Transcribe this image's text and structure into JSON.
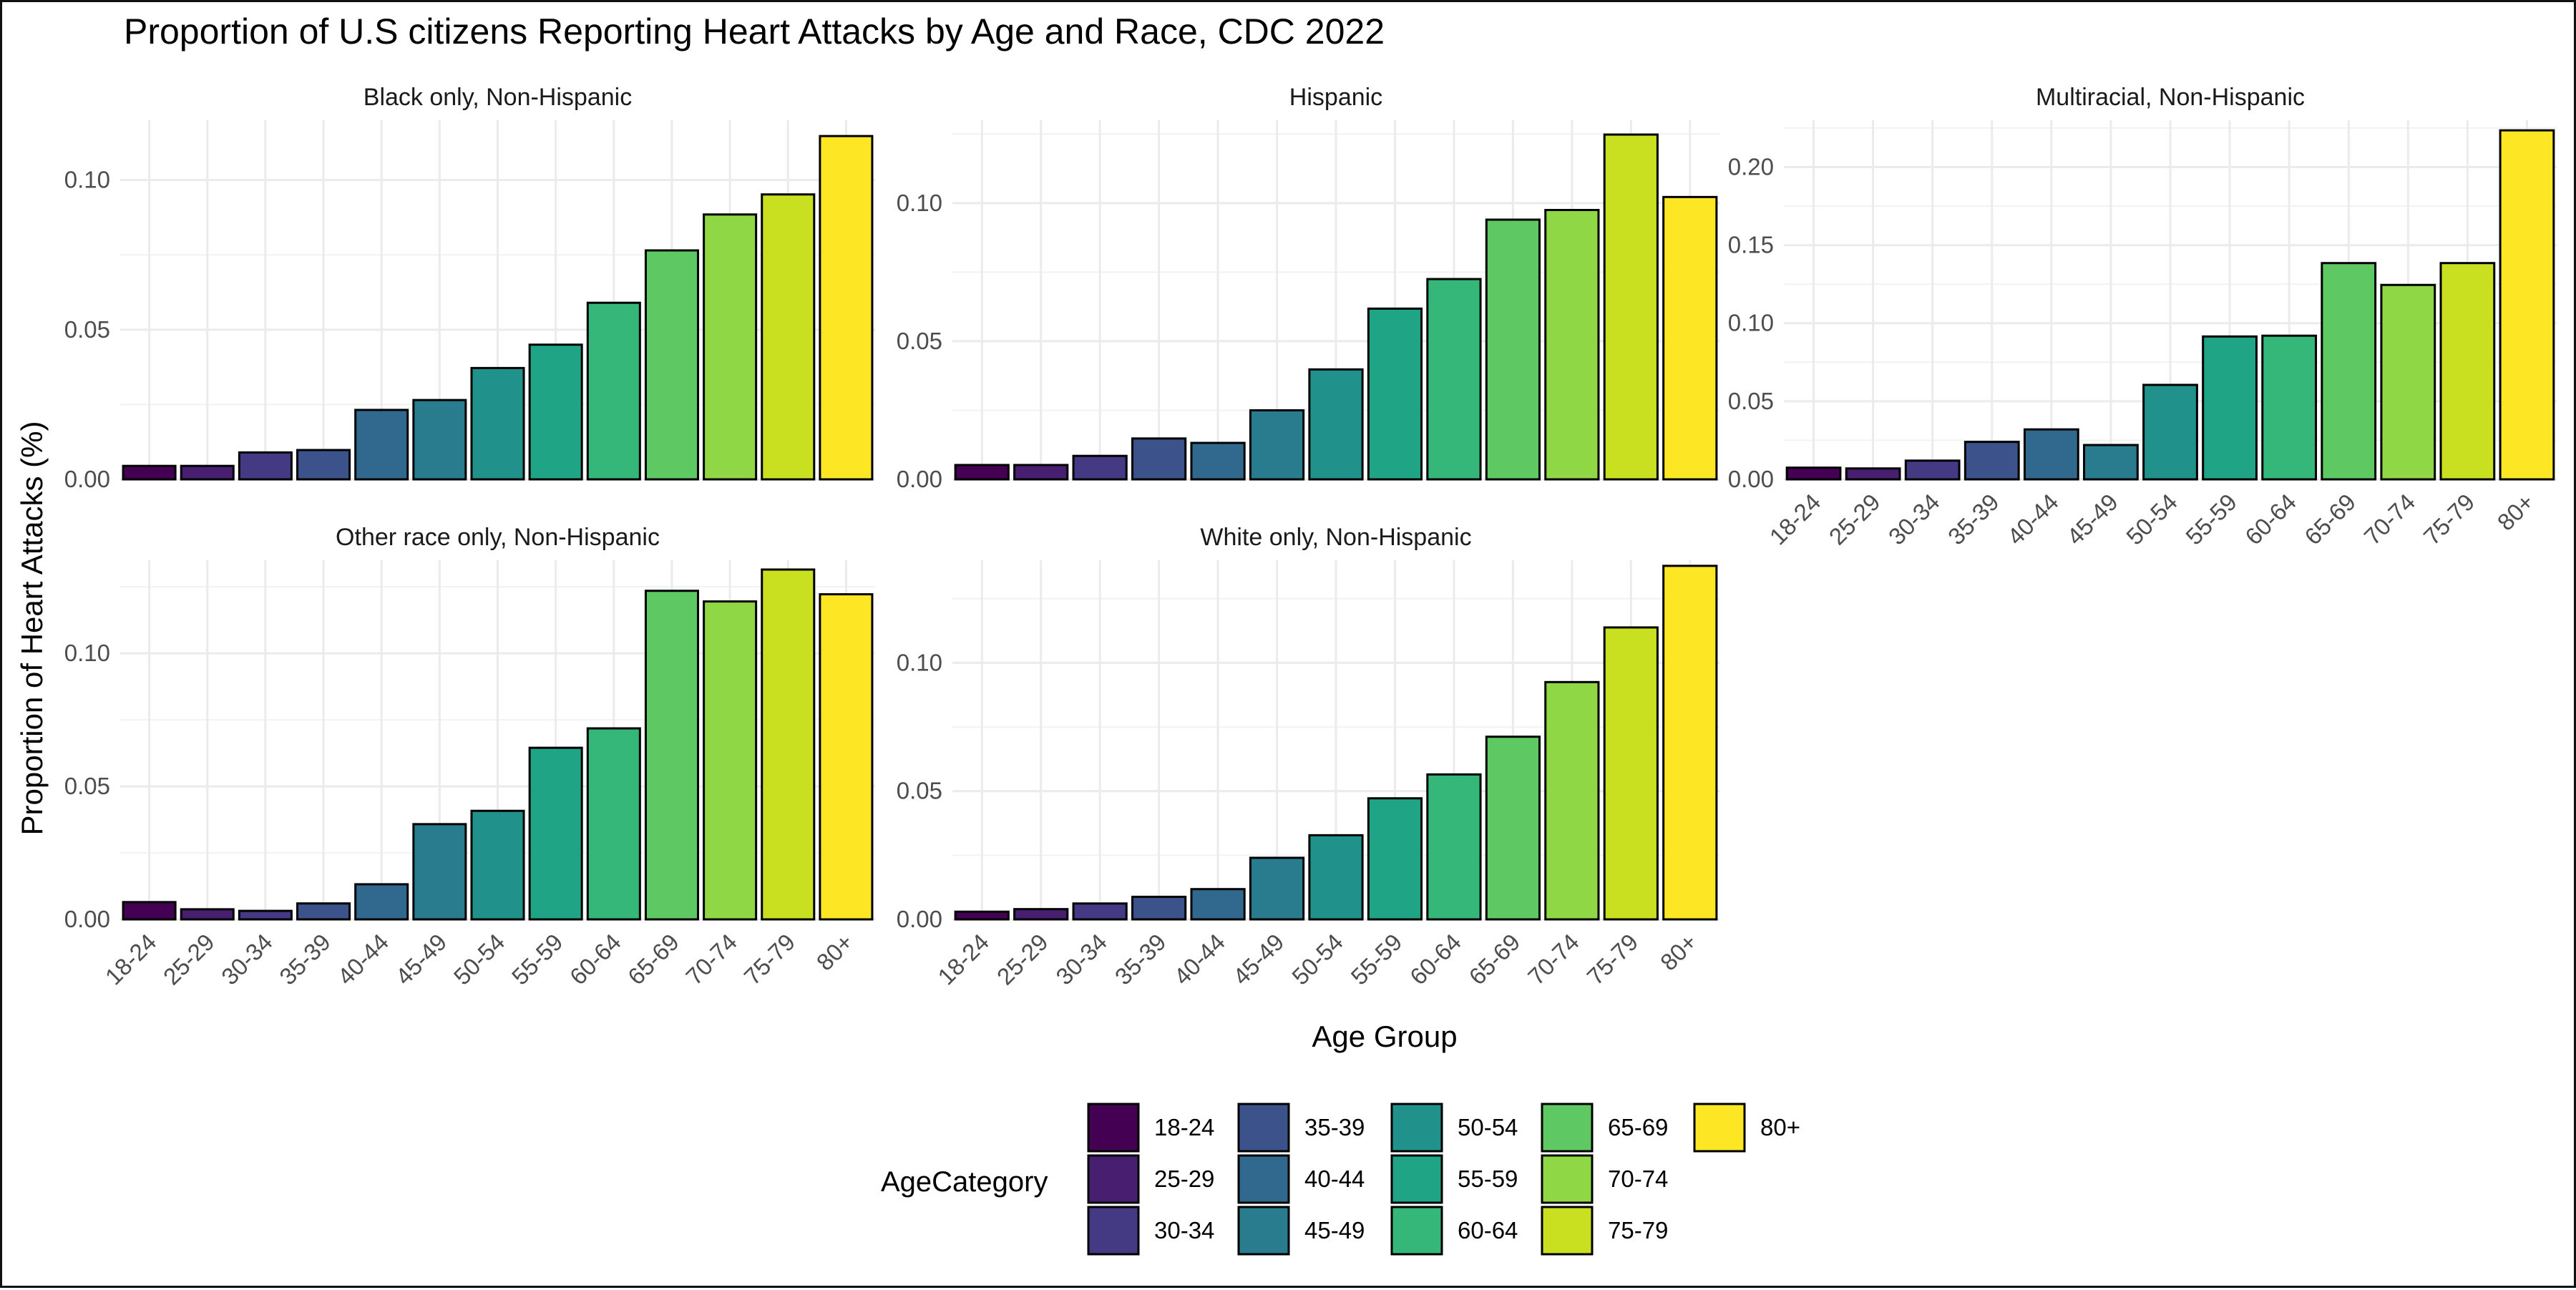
{
  "chart_data": {
    "type": "bar",
    "title": "Proportion of U.S citizens Reporting Heart Attacks by Age and Race, CDC 2022",
    "xlabel": "Age Group",
    "ylabel": "Proportion of Heart Attacks (%)",
    "categories": [
      "18-24",
      "25-29",
      "30-34",
      "35-39",
      "40-44",
      "45-49",
      "50-54",
      "55-59",
      "60-64",
      "65-69",
      "70-74",
      "75-79",
      "80+"
    ],
    "colors": [
      "#440154",
      "#481f70",
      "#443983",
      "#3b528b",
      "#31688e",
      "#287c8e",
      "#21918c",
      "#20a486",
      "#35b779",
      "#5ec962",
      "#8fd744",
      "#c8e020",
      "#fde725"
    ],
    "grid": true,
    "legend": {
      "title": "AgeCategory",
      "position": "bottom",
      "entries": [
        "18-24",
        "25-29",
        "30-34",
        "35-39",
        "40-44",
        "45-49",
        "50-54",
        "55-59",
        "60-64",
        "65-69",
        "70-74",
        "75-79",
        "80+"
      ]
    },
    "facets": [
      {
        "name": "Black only, Non-Hispanic",
        "ylim": [
          0,
          0.12
        ],
        "yticks": [
          0,
          0.05,
          0.1
        ],
        "tick_labels": [
          "0.00",
          "0.05",
          "0.10"
        ],
        "values": [
          0.0045,
          0.0045,
          0.009,
          0.0098,
          0.0232,
          0.0265,
          0.0372,
          0.045,
          0.059,
          0.0765,
          0.0885,
          0.0952,
          0.1147
        ]
      },
      {
        "name": "Hispanic",
        "ylim": [
          0,
          0.13
        ],
        "yticks": [
          0,
          0.05,
          0.1
        ],
        "tick_labels": [
          "0.00",
          "0.05",
          "0.10"
        ],
        "values": [
          0.0052,
          0.0052,
          0.0085,
          0.0148,
          0.0132,
          0.025,
          0.0398,
          0.0618,
          0.0725,
          0.094,
          0.0975,
          0.1248,
          0.1022
        ]
      },
      {
        "name": "Multiracial, Non-Hispanic",
        "ylim": [
          0,
          0.23
        ],
        "yticks": [
          0,
          0.05,
          0.1,
          0.15,
          0.2
        ],
        "tick_labels": [
          "0.00",
          "0.05",
          "0.10",
          "0.15",
          "0.20"
        ],
        "values": [
          0.0075,
          0.007,
          0.012,
          0.024,
          0.032,
          0.022,
          0.0605,
          0.0915,
          0.092,
          0.1385,
          0.1245,
          0.1385,
          0.2235
        ]
      },
      {
        "name": "Other race only, Non-Hispanic",
        "ylim": [
          0,
          0.135
        ],
        "yticks": [
          0,
          0.05,
          0.1
        ],
        "tick_labels": [
          "0.00",
          "0.05",
          "0.10"
        ],
        "values": [
          0.0065,
          0.0038,
          0.0032,
          0.006,
          0.0132,
          0.0358,
          0.0408,
          0.0645,
          0.0718,
          0.1235,
          0.1195,
          0.1315,
          0.1222
        ]
      },
      {
        "name": "White only, Non-Hispanic",
        "ylim": [
          0,
          0.14
        ],
        "yticks": [
          0,
          0.05,
          0.1
        ],
        "tick_labels": [
          "0.00",
          "0.05",
          "0.10"
        ],
        "values": [
          0.003,
          0.004,
          0.0062,
          0.0088,
          0.0118,
          0.024,
          0.0328,
          0.0472,
          0.0565,
          0.0712,
          0.0925,
          0.1138,
          0.1378
        ]
      }
    ]
  }
}
